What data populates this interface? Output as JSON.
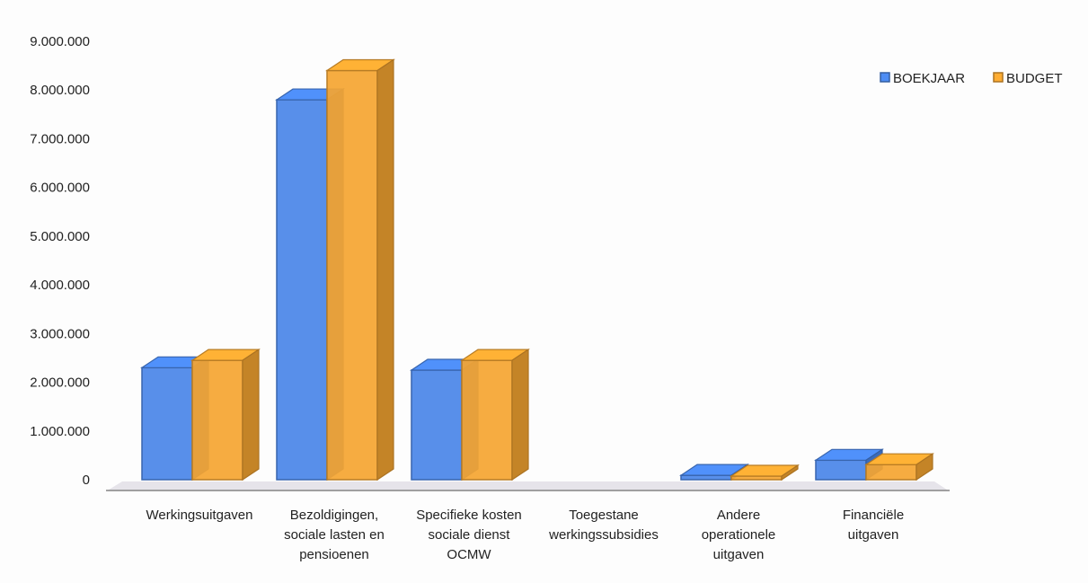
{
  "chart_data": {
    "type": "bar",
    "title": "",
    "xlabel": "",
    "ylabel": "",
    "ylim": [
      0,
      9000000
    ],
    "y_ticks": [
      "0",
      "1.000.000",
      "2.000.000",
      "3.000.000",
      "4.000.000",
      "5.000.000",
      "6.000.000",
      "7.000.000",
      "8.000.000",
      "9.000.000"
    ],
    "y_tick_values": [
      0,
      1000000,
      2000000,
      3000000,
      4000000,
      5000000,
      6000000,
      7000000,
      8000000,
      9000000
    ],
    "categories": [
      [
        "Werkingsuitgaven"
      ],
      [
        "Bezoldigingen,",
        "sociale lasten en",
        "pensioenen"
      ],
      [
        "Specifieke kosten",
        "sociale dienst",
        "OCMW"
      ],
      [
        "Toegestane",
        "werkingssubsidies"
      ],
      [
        "Andere",
        "operationele",
        "uitgaven"
      ],
      [
        "Financiële",
        "uitgaven"
      ]
    ],
    "series": [
      {
        "name": "BOEKJAAR",
        "color": "#4a86e8",
        "values": [
          2300000,
          7800000,
          2250000,
          0,
          90000,
          400000
        ]
      },
      {
        "name": "BUDGET",
        "color": "#f5a531",
        "values": [
          2450000,
          8400000,
          2450000,
          0,
          60000,
          310000
        ]
      }
    ],
    "legend_position": "top-right",
    "grid": false,
    "style": "3d-column"
  }
}
